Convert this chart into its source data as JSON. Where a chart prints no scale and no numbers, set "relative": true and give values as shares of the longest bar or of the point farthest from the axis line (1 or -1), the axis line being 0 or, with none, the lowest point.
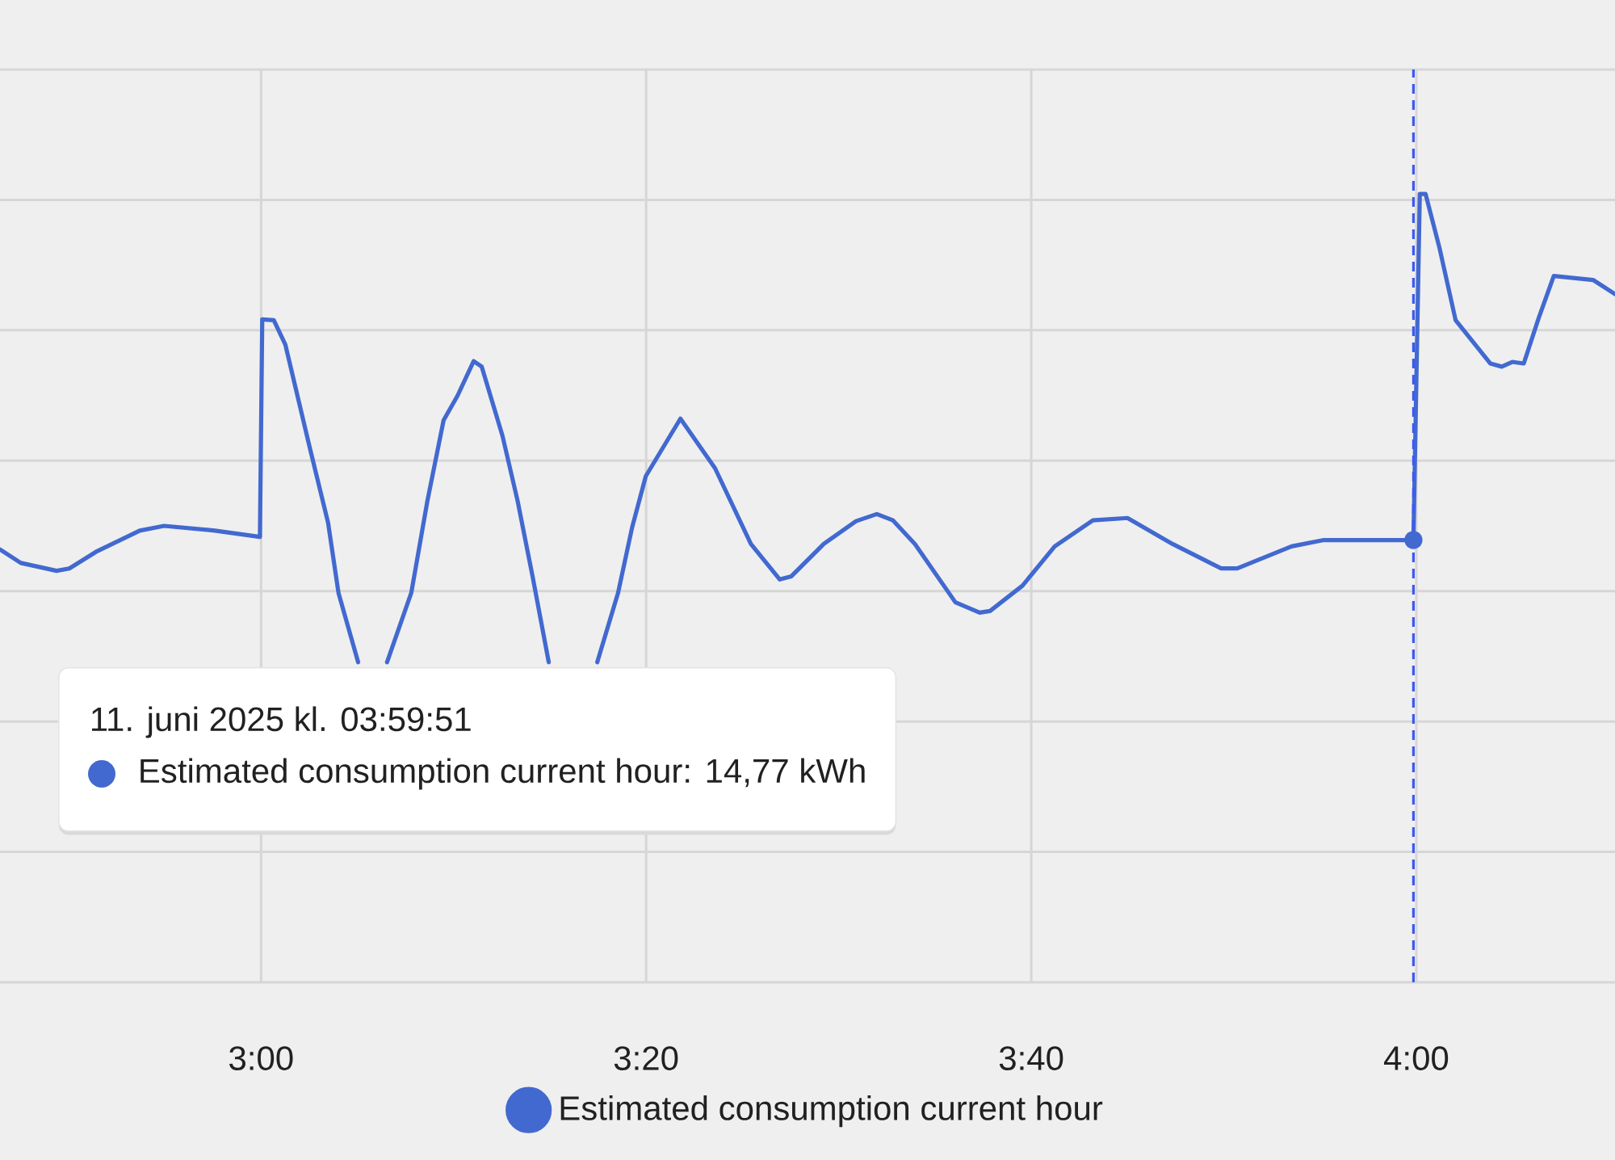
{
  "chart_data": {
    "type": "line",
    "relative": true,
    "x": [
      2.774,
      2.792,
      2.823,
      2.834,
      2.857,
      2.895,
      2.916,
      2.96,
      2.999,
      3.001,
      3.011,
      3.021,
      3.042,
      3.058,
      3.067,
      3.084,
      3.096,
      3.109,
      3.13,
      3.144,
      3.158,
      3.17,
      3.184,
      3.191,
      3.209,
      3.222,
      3.235,
      3.249,
      3.27,
      3.291,
      3.309,
      3.321,
      3.333,
      3.363,
      3.393,
      3.424,
      3.449,
      3.459,
      3.487,
      3.515,
      3.533,
      3.547,
      3.566,
      3.601,
      3.622,
      3.631,
      3.659,
      3.687,
      3.72,
      3.75,
      3.789,
      3.831,
      3.845,
      3.892,
      3.92,
      3.957,
      3.9975,
      4.003,
      4.008,
      4.02,
      4.034,
      4.064,
      4.074,
      4.083,
      4.093,
      4.106,
      4.119,
      4.153,
      4.172
    ],
    "series": [
      {
        "name": "Estimated consumption current hour",
        "color": "#4269d0",
        "values": [
          0.549,
          0.532,
          0.522,
          0.525,
          0.546,
          0.573,
          0.579,
          0.573,
          0.565,
          0.841,
          0.84,
          0.809,
          0.679,
          0.583,
          0.494,
          0.406,
          null,
          0.406,
          0.494,
          0.611,
          0.713,
          0.744,
          0.788,
          0.781,
          0.693,
          0.611,
          0.515,
          0.406,
          null,
          0.406,
          0.494,
          0.576,
          0.642,
          0.715,
          0.652,
          0.556,
          0.511,
          0.515,
          0.556,
          0.585,
          0.594,
          0.586,
          0.556,
          0.482,
          0.469,
          0.471,
          0.503,
          0.553,
          0.586,
          0.589,
          0.556,
          0.525,
          0.525,
          0.553,
          0.561,
          0.561,
          0.561,
          1,
          1,
          0.932,
          0.84,
          0.785,
          0.781,
          0.787,
          0.785,
          0.843,
          0.896,
          0.891,
          0.873
        ]
      }
    ],
    "xlim": [
      2.774,
      4.172
    ],
    "xticks": [
      {
        "value": 3,
        "label": "3:00"
      },
      {
        "value": 3.3333,
        "label": "3:20"
      },
      {
        "value": 3.6667,
        "label": "3:40"
      },
      {
        "value": 4,
        "label": "4:00"
      }
    ],
    "grid": true,
    "legend": "bottom",
    "line_style": "solid",
    "ref_lines": [
      {
        "axis": "x",
        "value": 3.9975,
        "color": "#3d5af1",
        "line_style": "dashed"
      }
    ],
    "annotations": [
      "11. juni 2025 kl. 03:59:51",
      "Estimated consumption current hour: 14,77 kWh"
    ]
  }
}
